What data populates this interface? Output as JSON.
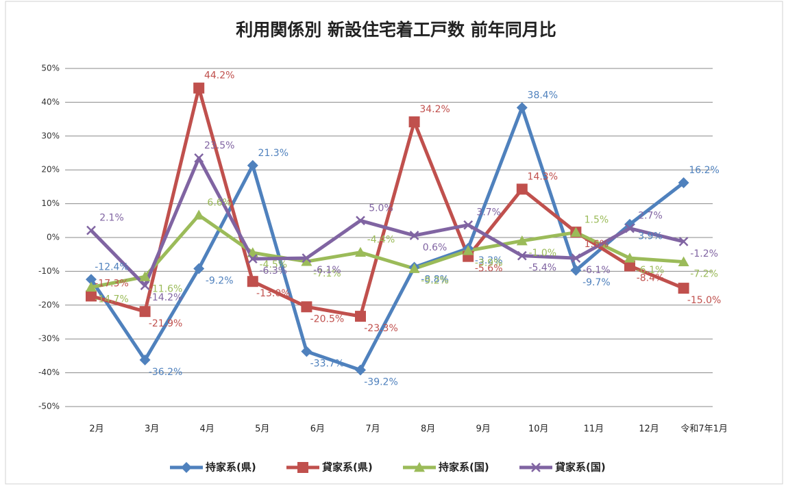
{
  "chart_data": {
    "type": "line",
    "title": "利用関係別 新設住宅着工戸数 前年同月比",
    "categories": [
      "2月",
      "3月",
      "4月",
      "5月",
      "6月",
      "7月",
      "8月",
      "9月",
      "10月",
      "11月",
      "12月",
      "令和7年1月"
    ],
    "ylim": [
      -50,
      50
    ],
    "yticks": [
      {
        "value": -50,
        "label": "-50%"
      },
      {
        "value": -40,
        "label": "-40%"
      },
      {
        "value": -30,
        "label": "-30%"
      },
      {
        "value": -20,
        "label": "-20%"
      },
      {
        "value": -10,
        "label": "-10%"
      },
      {
        "value": 0,
        "label": "0%"
      },
      {
        "value": 10,
        "label": "10%"
      },
      {
        "value": 20,
        "label": "20%"
      },
      {
        "value": 30,
        "label": "30%"
      },
      {
        "value": 40,
        "label": "40%"
      },
      {
        "value": 50,
        "label": "50%"
      }
    ],
    "grid": true,
    "legend": "bottom",
    "series": [
      {
        "name": "持家系(県)",
        "color": "#4f81bd",
        "marker": "diamond",
        "values": [
          -12.4,
          -36.2,
          -9.2,
          21.3,
          -33.7,
          -39.2,
          -8.8,
          -3.2,
          38.4,
          -9.7,
          3.9,
          16.2
        ],
        "value_labels": [
          "-12.4%",
          "-36.2%",
          "-9.2%",
          "21.3%",
          "-33.7%",
          "-39.2%",
          "-8.8%",
          "-3.2%",
          "38.4%",
          "-9.7%",
          "3.9%",
          "16.2%"
        ]
      },
      {
        "name": "貸家系(県)",
        "color": "#c0504d",
        "marker": "square",
        "values": [
          -17.3,
          -21.9,
          44.2,
          -13.0,
          -20.5,
          -23.3,
          34.2,
          -5.6,
          14.3,
          1.6,
          -8.4,
          -15.0
        ],
        "value_labels": [
          "-17.3%",
          "-21.9%",
          "44.2%",
          "-13.0%",
          "-20.5%",
          "-23.3%",
          "34.2%",
          "-5.6%",
          "14.3%",
          "1.6%",
          "-8.4%",
          "-15.0%"
        ]
      },
      {
        "name": "持家系(国)",
        "color": "#9bbb59",
        "marker": "triangle",
        "values": [
          -14.7,
          -11.6,
          6.6,
          -4.5,
          -7.1,
          -4.4,
          -9.2,
          -3.9,
          -1.0,
          1.5,
          -6.1,
          -7.2
        ],
        "value_labels": [
          "-14.7%",
          "-11.6%",
          "6.6%",
          "-4.5%",
          "-7.1%",
          "-4.4%",
          "-9.2%",
          "-3.9%",
          "-1.0%",
          "1.5%",
          "-6.1%",
          "-7.2%"
        ]
      },
      {
        "name": "貸家系(国)",
        "color": "#8064a2",
        "marker": "x",
        "values": [
          2.1,
          -14.2,
          23.5,
          -6.3,
          -6.1,
          5.0,
          0.6,
          3.7,
          -5.4,
          -6.1,
          2.7,
          -1.2
        ],
        "value_labels": [
          "2.1%",
          "-14.2%",
          "23.5%",
          "-6.3%",
          "-6.1%",
          "5.0%",
          "0.6%",
          "3.7%",
          "-5.4%",
          "-6.1%",
          "2.7%",
          "-1.2%"
        ]
      }
    ]
  }
}
